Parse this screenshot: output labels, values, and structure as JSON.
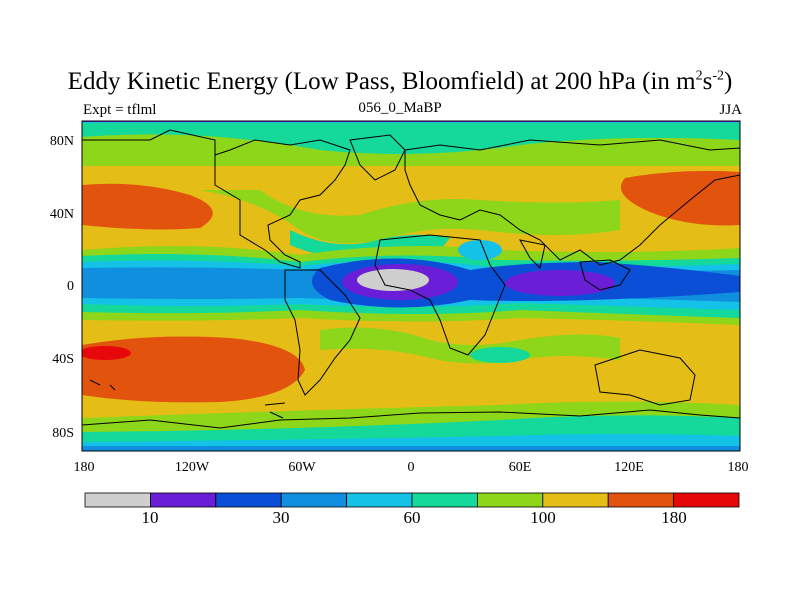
{
  "title": {
    "prefix": "Eddy Kinetic Energy (Low Pass, Bloomfield) at 200 hPa (in m",
    "sup1": "2",
    "mid": "s",
    "sup2": "-2",
    "suffix": ")"
  },
  "subtitle_left": "Expt = tflml",
  "subtitle_center": "056_0_MaBP",
  "subtitle_right": "JJA",
  "lat_labels": [
    "80N",
    "40N",
    "0",
    "40S",
    "80S"
  ],
  "lon_labels": [
    "180",
    "120W",
    "60W",
    "0",
    "60E",
    "120E",
    "180"
  ],
  "colorbar": {
    "colors": [
      "#cfcfcf",
      "#6a1fd6",
      "#0a4fd6",
      "#118fdf",
      "#13c2e6",
      "#14d99a",
      "#8dd61a",
      "#e4be17",
      "#e2540e",
      "#e6080b"
    ],
    "labels": [
      "10",
      "30",
      "60",
      "100",
      "180"
    ]
  }
}
